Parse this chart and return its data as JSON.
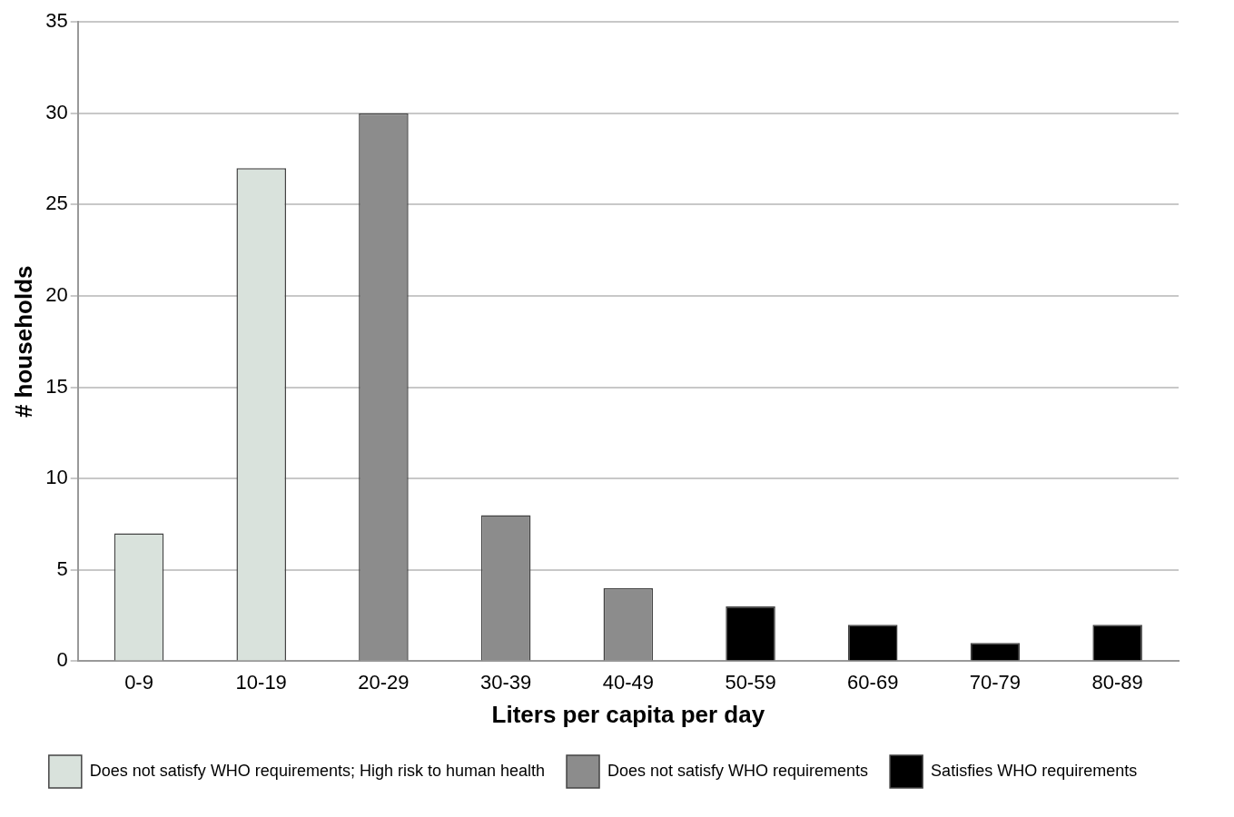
{
  "chart_data": {
    "type": "bar",
    "xlabel": "Liters per capita per day",
    "ylabel": "# households",
    "categories": [
      "0-9",
      "10-19",
      "20-29",
      "30-39",
      "40-49",
      "50-59",
      "60-69",
      "70-79",
      "80-89"
    ],
    "series": [
      {
        "name": "Does not satisfy WHO requirements; High risk to human health",
        "color": "#d9e2dc",
        "values": [
          7,
          27,
          null,
          null,
          null,
          null,
          null,
          null,
          null
        ]
      },
      {
        "name": "Does not satisfy WHO requirements",
        "color": "#8c8c8c",
        "values": [
          null,
          null,
          30,
          8,
          4,
          null,
          null,
          null,
          null
        ]
      },
      {
        "name": "Satisfies WHO requirements",
        "color": "#000000",
        "values": [
          null,
          null,
          null,
          null,
          null,
          3,
          2,
          1,
          2
        ]
      }
    ],
    "ylim": [
      0,
      35
    ],
    "yticks": [
      0,
      5,
      10,
      15,
      20,
      25,
      30,
      35
    ],
    "grid": "y",
    "legend": "bottom"
  }
}
